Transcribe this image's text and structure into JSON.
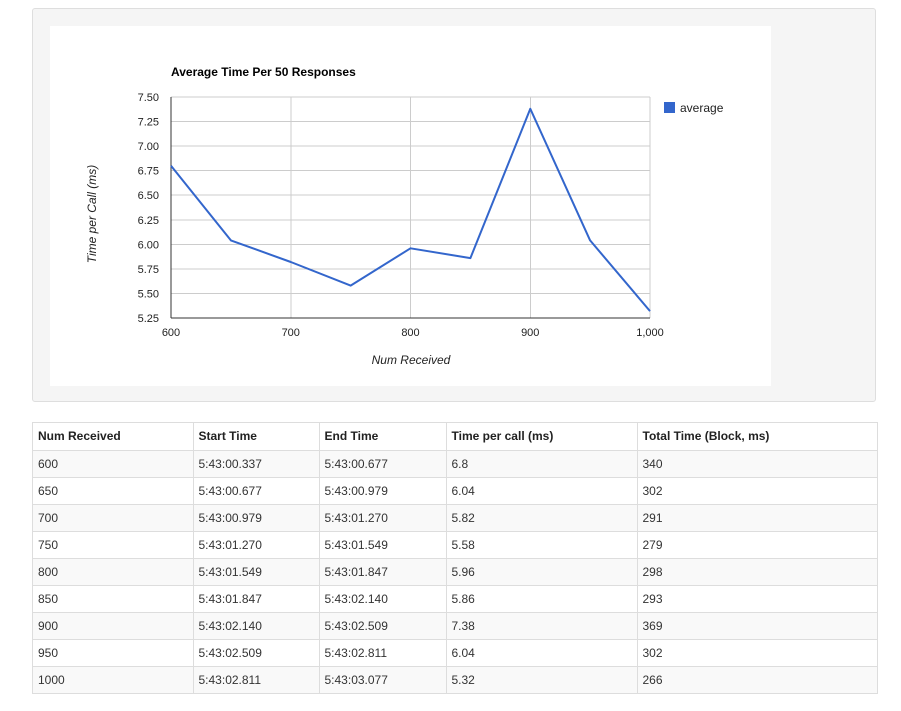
{
  "chart_data": {
    "type": "line",
    "title": "Average Time Per 50 Responses",
    "xlabel": "Num Received",
    "ylabel": "Time per Call (ms)",
    "x": [
      600,
      650,
      700,
      750,
      800,
      850,
      900,
      950,
      1000
    ],
    "series": [
      {
        "name": "average",
        "color": "#3366cc",
        "values": [
          6.8,
          6.04,
          5.82,
          5.58,
          5.96,
          5.86,
          7.38,
          6.04,
          5.32
        ]
      }
    ],
    "xlim": [
      600,
      1000
    ],
    "ylim": [
      5.25,
      7.5
    ],
    "x_ticks": [
      600,
      700,
      800,
      900,
      1000
    ],
    "x_tick_labels": [
      "600",
      "700",
      "800",
      "900",
      "1,000"
    ],
    "y_ticks": [
      5.25,
      5.5,
      5.75,
      6.0,
      6.25,
      6.5,
      6.75,
      7.0,
      7.25,
      7.5
    ],
    "y_tick_labels": [
      "5.25",
      "5.50",
      "5.75",
      "6.00",
      "6.25",
      "6.50",
      "6.75",
      "7.00",
      "7.25",
      "7.50"
    ],
    "grid": true,
    "legend_position": "right"
  },
  "table": {
    "headers": [
      "Num Received",
      "Start Time",
      "End Time",
      "Time per call (ms)",
      "Total Time (Block, ms)"
    ],
    "rows": [
      [
        "600",
        "5:43:00.337",
        "5:43:00.677",
        "6.8",
        "340"
      ],
      [
        "650",
        "5:43:00.677",
        "5:43:00.979",
        "6.04",
        "302"
      ],
      [
        "700",
        "5:43:00.979",
        "5:43:01.270",
        "5.82",
        "291"
      ],
      [
        "750",
        "5:43:01.270",
        "5:43:01.549",
        "5.58",
        "279"
      ],
      [
        "800",
        "5:43:01.549",
        "5:43:01.847",
        "5.96",
        "298"
      ],
      [
        "850",
        "5:43:01.847",
        "5:43:02.140",
        "5.86",
        "293"
      ],
      [
        "900",
        "5:43:02.140",
        "5:43:02.509",
        "7.38",
        "369"
      ],
      [
        "950",
        "5:43:02.509",
        "5:43:02.811",
        "6.04",
        "302"
      ],
      [
        "1000",
        "5:43:02.811",
        "5:43:03.077",
        "5.32",
        "266"
      ]
    ]
  }
}
